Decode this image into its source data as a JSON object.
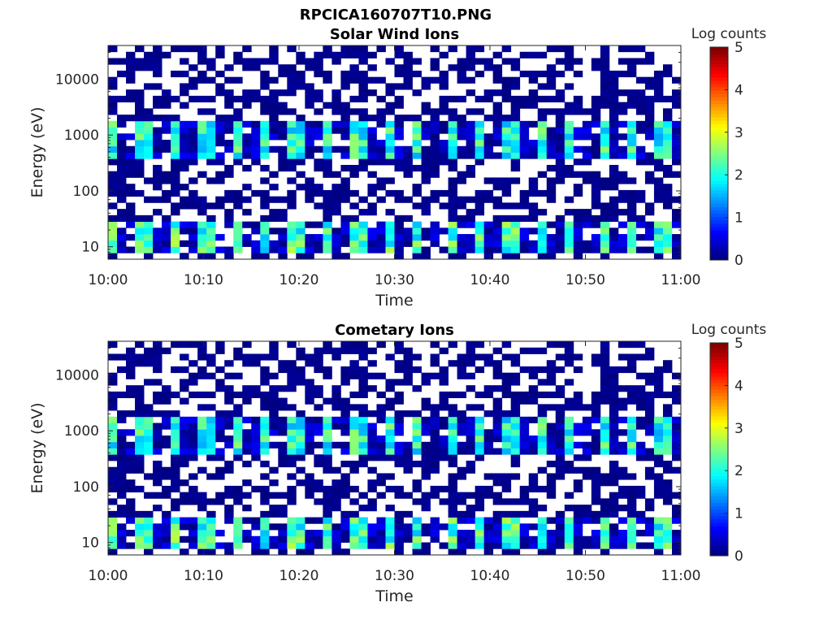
{
  "figure": {
    "title": "RPCICA160707T10.PNG"
  },
  "colors": {
    "no_data": "#ffffff",
    "axis": "#262626",
    "colormap": "jet"
  },
  "chart_data": [
    {
      "type": "heatmap",
      "title": "Solar Wind Ions",
      "xlabel": "Time",
      "ylabel": "Energy (eV)",
      "x_ticks": [
        "10:00",
        "10:10",
        "10:20",
        "10:30",
        "10:40",
        "10:50",
        "11:00"
      ],
      "x_range": [
        "10:00",
        "11:00"
      ],
      "y_scale": "log",
      "y_ticks": [
        10,
        100,
        1000,
        10000
      ],
      "y_tick_labels": [
        "10",
        "100",
        "1000",
        "10000"
      ],
      "y_range": [
        6,
        40000
      ],
      "colorbar": {
        "label": "Log counts",
        "range": [
          0,
          5
        ],
        "ticks": [
          "0",
          "1",
          "2",
          "3",
          "4",
          "5"
        ]
      },
      "grid": false,
      "time_bins": 64,
      "energy_bins": 34,
      "cell_values": "log counts per time/energy bin; mostly 0 to ~0.5 (dark blue) or empty, periodic bursts to ~2-3 near 500-1500 eV and 8-25 eV roughly every 3 minutes",
      "features": [
        {
          "energy_eV": [
            400,
            1800
          ],
          "peak_log_counts": 2.6,
          "period_min": 3.2,
          "start": "10:00"
        },
        {
          "energy_eV": [
            8,
            27
          ],
          "peak_log_counts": 2.8,
          "period_min": 3.2,
          "start": "10:00"
        }
      ]
    },
    {
      "type": "heatmap",
      "title": "Cometary Ions",
      "xlabel": "Time",
      "ylabel": "Energy (eV)",
      "x_ticks": [
        "10:00",
        "10:10",
        "10:20",
        "10:30",
        "10:40",
        "10:50",
        "11:00"
      ],
      "x_range": [
        "10:00",
        "11:00"
      ],
      "y_scale": "log",
      "y_ticks": [
        10,
        100,
        1000,
        10000
      ],
      "y_tick_labels": [
        "10",
        "100",
        "1000",
        "10000"
      ],
      "y_range": [
        6,
        40000
      ],
      "colorbar": {
        "label": "Log counts",
        "range": [
          0,
          5
        ],
        "ticks": [
          "0",
          "1",
          "2",
          "3",
          "4",
          "5"
        ]
      },
      "grid": false,
      "time_bins": 64,
      "energy_bins": 34,
      "cell_values": "same pattern as Solar Wind Ions panel",
      "features": [
        {
          "energy_eV": [
            400,
            1800
          ],
          "peak_log_counts": 2.6,
          "period_min": 3.2,
          "start": "10:00"
        },
        {
          "energy_eV": [
            8,
            27
          ],
          "peak_log_counts": 2.8,
          "period_min": 3.2,
          "start": "10:00"
        }
      ]
    }
  ]
}
